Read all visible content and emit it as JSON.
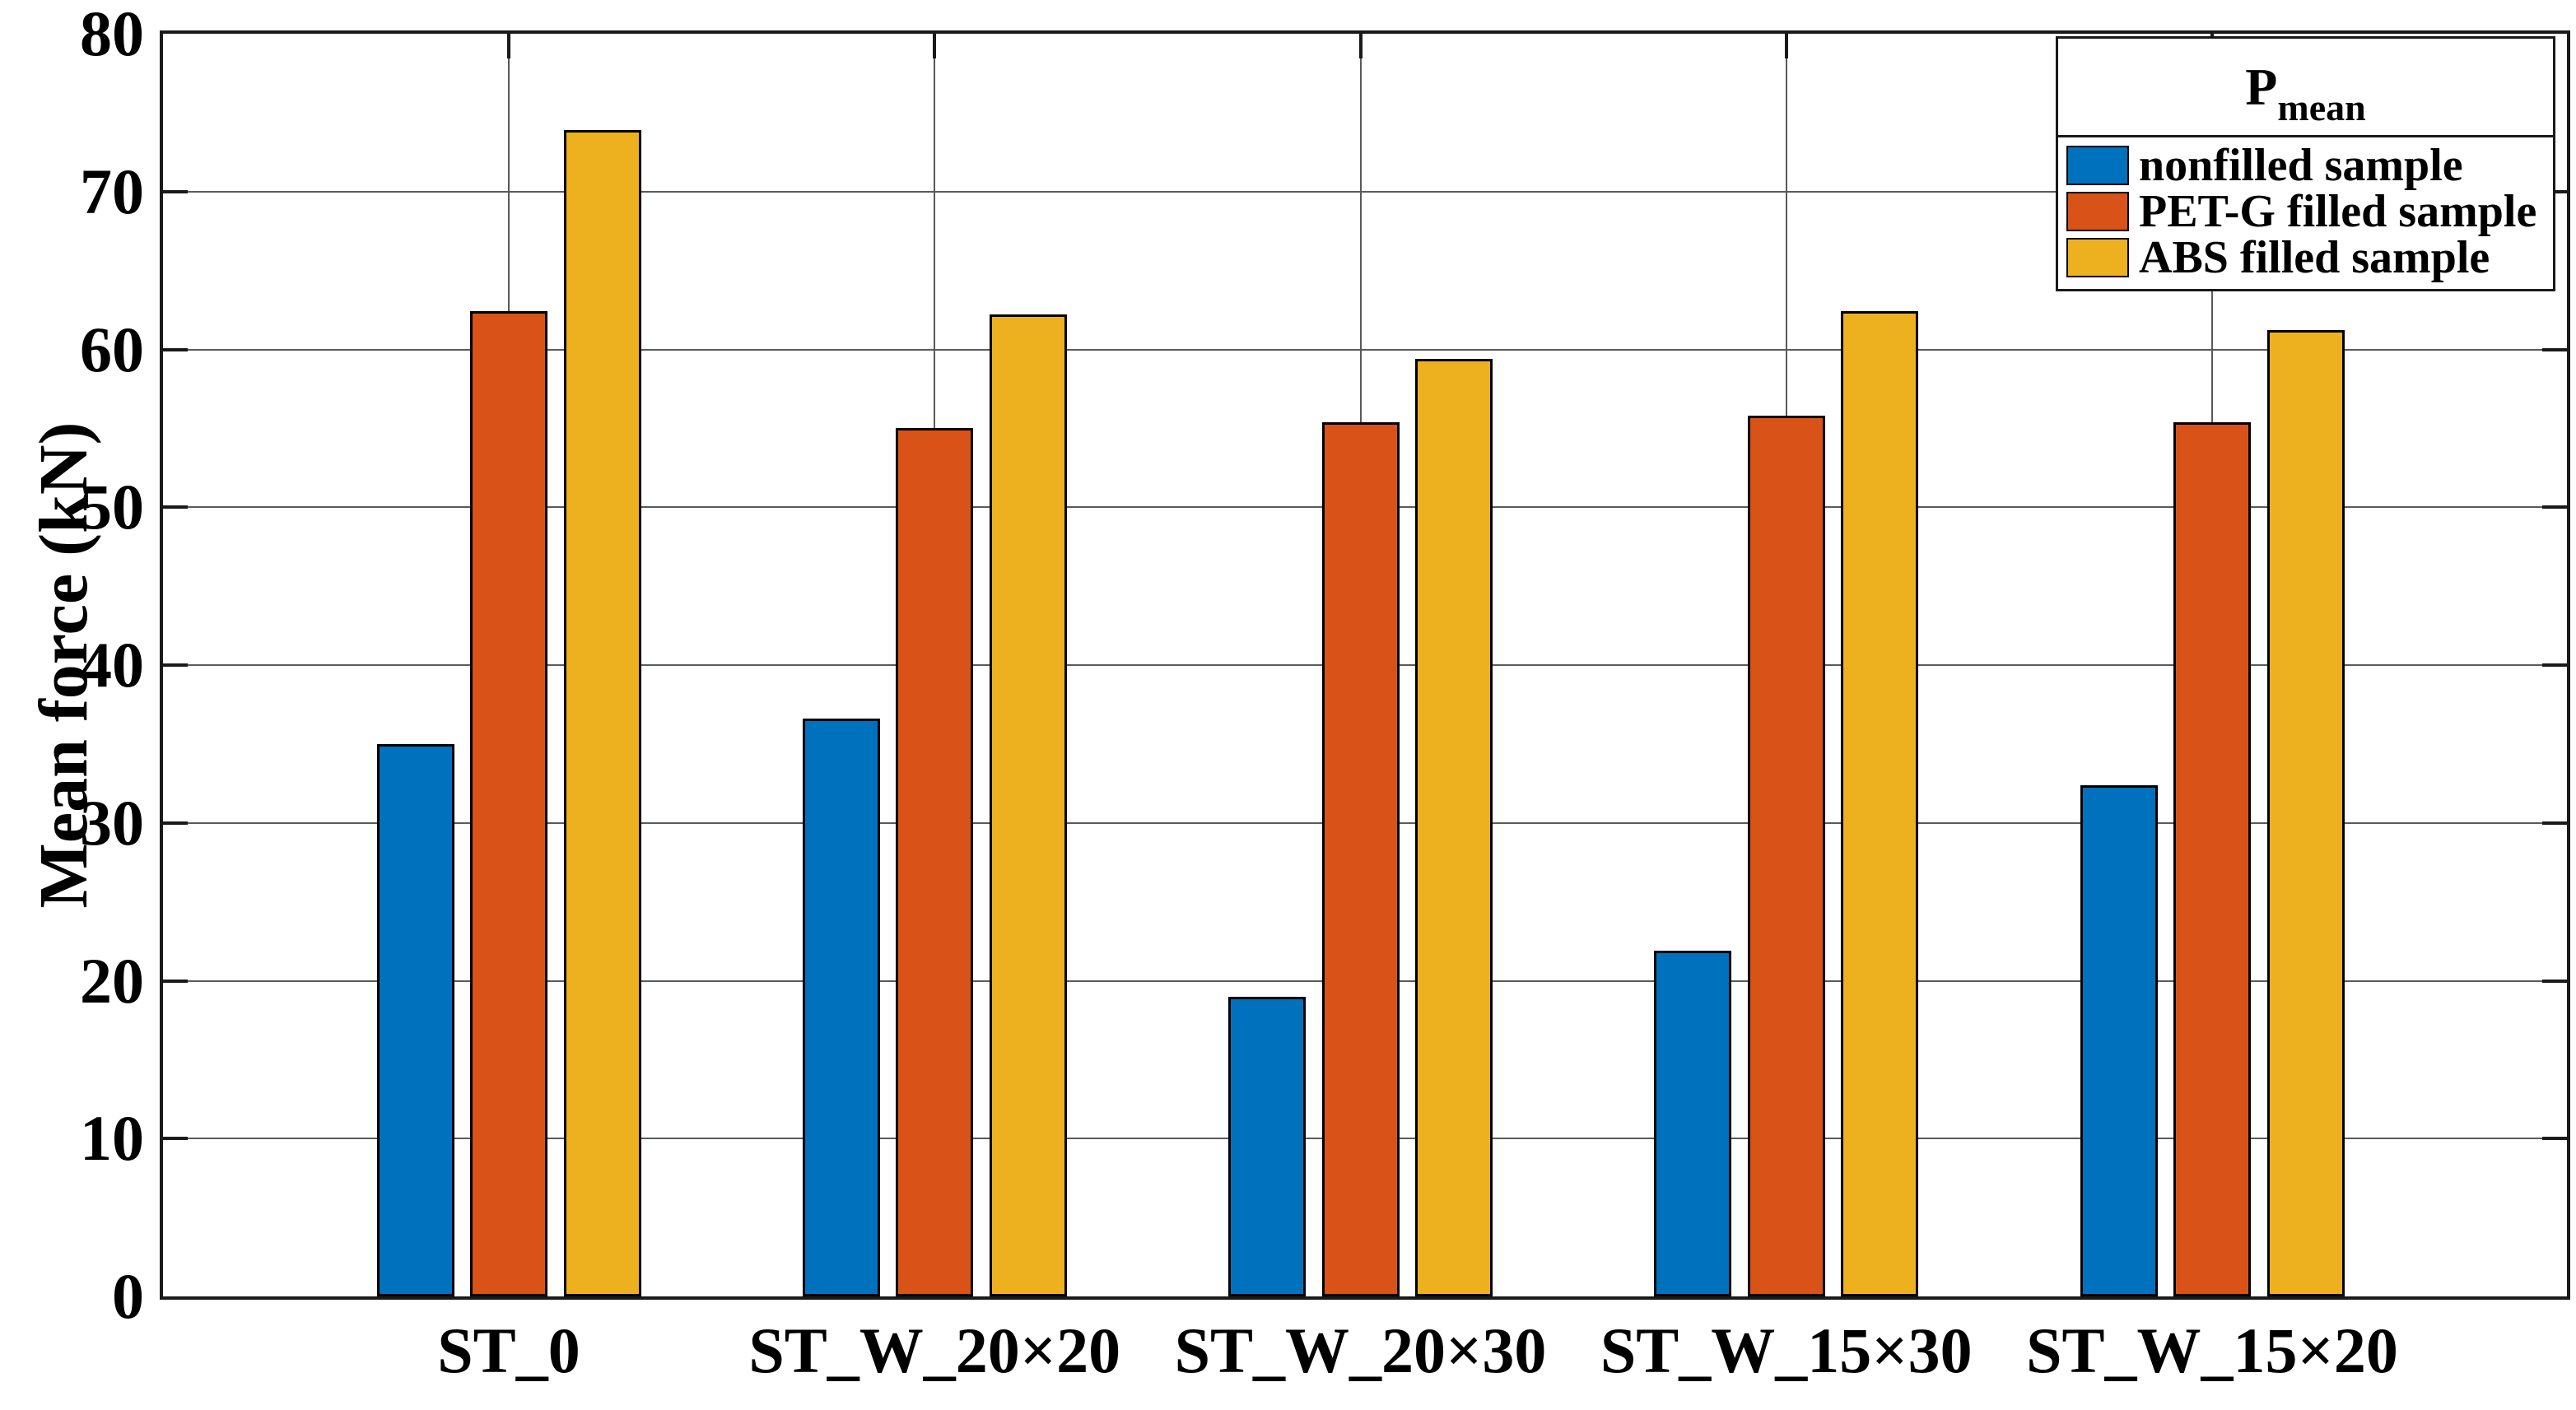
{
  "chart_data": {
    "type": "bar",
    "title": "",
    "xlabel": "",
    "ylabel": "Mean force (kN)",
    "ylim": [
      0,
      80
    ],
    "yticks": [
      0,
      10,
      20,
      30,
      40,
      50,
      60,
      70,
      80
    ],
    "grid": "horizontal and vertical gridlines, dark gray, behind bars",
    "categories": [
      "ST_0",
      "ST_W_20×20",
      "ST_W_20×30",
      "ST_W_15×30",
      "ST_W_15×20"
    ],
    "series": [
      {
        "name": "nonfilled sample",
        "color": "#0072BD",
        "values": [
          35.0,
          36.6,
          19.0,
          21.9,
          32.4
        ]
      },
      {
        "name": "PET-G filled sample",
        "color": "#D95319",
        "values": [
          62.4,
          55.0,
          55.4,
          55.8,
          55.4
        ]
      },
      {
        "name": "ABS filled sample",
        "color": "#EDB120",
        "values": [
          73.9,
          62.2,
          59.4,
          62.4,
          61.2
        ]
      }
    ],
    "legend": {
      "title_main": "P",
      "title_sub": "mean",
      "position": "top-right inside plot"
    }
  },
  "colors": {
    "background": "#ffffff",
    "axis_border": "#1a1a1a",
    "gridline": "#5a5a5a",
    "bar_edge": "#000000",
    "text": "#000000"
  }
}
